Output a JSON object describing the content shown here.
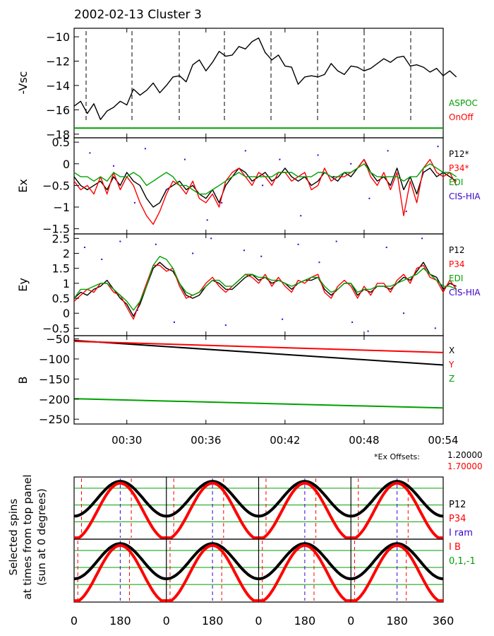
{
  "page": {
    "title": "2002-02-13 Cluster 3"
  },
  "colors": {
    "black": "#000000",
    "red": "#ff0000",
    "green": "#00a000",
    "blue": "#3a00d0",
    "grid_green": "#00a000"
  },
  "chart_data": [
    {
      "id": "vsc",
      "type": "line",
      "ylabel": "-Vsc",
      "yticks": [
        -10,
        -12,
        -14,
        -16,
        -18
      ],
      "ylim": [
        -18.3,
        -9.3
      ],
      "xlim": [
        26,
        54
      ],
      "series": [
        {
          "color": "black",
          "step": 0.5,
          "values": [
            -15.7,
            -15.3,
            -16.3,
            -15.5,
            -16.8,
            -16.1,
            -15.8,
            -15.3,
            -15.6,
            -14.3,
            -14.8,
            -14.4,
            -13.8,
            -14.6,
            -14.0,
            -13.3,
            -13.2,
            -13.7,
            -12.3,
            -11.9,
            -12.8,
            -12.1,
            -11.2,
            -11.6,
            -11.5,
            -10.8,
            -11.0,
            -10.4,
            -10.1,
            -11.3,
            -11.9,
            -11.5,
            -12.4,
            -12.5,
            -13.9,
            -13.3,
            -13.2,
            -13.3,
            -13.1,
            -12.2,
            -12.8,
            -13.1,
            -12.4,
            -12.5,
            -12.8,
            -12.6,
            -12.2,
            -11.8,
            -12.1,
            -11.7,
            -11.6,
            -12.4,
            -12.3,
            -12.5,
            -12.9,
            -12.6,
            -13.2,
            -12.8,
            -13.3
          ]
        },
        {
          "color": "green",
          "step": 28,
          "values": [
            -17.5,
            -17.5
          ]
        }
      ],
      "legend": [
        {
          "label": "ASPOC",
          "color": "green"
        },
        {
          "label": "OnOff",
          "color": "red"
        }
      ]
    },
    {
      "id": "ex",
      "type": "line",
      "ylabel": "Ex",
      "yticks": [
        0.5,
        0.0,
        -0.5,
        -1.0,
        -1.5
      ],
      "ylim": [
        -1.62,
        0.6
      ],
      "xlim": [
        26,
        54
      ],
      "series": [
        {
          "color": "black",
          "step": 0.5,
          "values": [
            -0.3,
            -0.5,
            -0.6,
            -0.5,
            -0.4,
            -0.6,
            -0.3,
            -0.5,
            -0.2,
            -0.4,
            -0.5,
            -0.8,
            -1.0,
            -0.9,
            -0.6,
            -0.5,
            -0.4,
            -0.6,
            -0.5,
            -0.7,
            -0.8,
            -0.6,
            -0.9,
            -0.5,
            -0.3,
            -0.1,
            -0.2,
            -0.4,
            -0.3,
            -0.2,
            -0.4,
            -0.3,
            -0.1,
            -0.3,
            -0.4,
            -0.3,
            -0.5,
            -0.4,
            -0.2,
            -0.3,
            -0.4,
            -0.2,
            -0.3,
            -0.1,
            0.1,
            -0.2,
            -0.4,
            -0.3,
            -0.5,
            -0.1,
            -0.6,
            -0.3,
            -0.7,
            -0.2,
            -0.1,
            -0.3,
            -0.2,
            -0.3,
            -0.4
          ]
        },
        {
          "color": "red",
          "step": 0.5,
          "values": [
            -0.4,
            -0.6,
            -0.5,
            -0.7,
            -0.3,
            -0.7,
            -0.2,
            -0.6,
            -0.3,
            -0.5,
            -0.9,
            -1.2,
            -1.4,
            -1.1,
            -0.7,
            -0.4,
            -0.5,
            -0.7,
            -0.4,
            -0.8,
            -0.9,
            -0.7,
            -1.0,
            -0.4,
            -0.2,
            -0.1,
            -0.3,
            -0.5,
            -0.2,
            -0.3,
            -0.5,
            -0.2,
            -0.2,
            -0.4,
            -0.3,
            -0.2,
            -0.6,
            -0.5,
            -0.1,
            -0.4,
            -0.3,
            -0.3,
            -0.2,
            -0.1,
            0.1,
            -0.3,
            -0.5,
            -0.2,
            -0.6,
            -0.2,
            -1.2,
            -0.4,
            -0.9,
            -0.1,
            0.1,
            -0.2,
            -0.3,
            -0.2,
            -0.5
          ]
        },
        {
          "color": "green",
          "step": 0.5,
          "values": [
            -0.2,
            -0.3,
            -0.3,
            -0.4,
            -0.3,
            -0.4,
            -0.2,
            -0.3,
            -0.3,
            -0.2,
            -0.3,
            -0.5,
            -0.4,
            -0.3,
            -0.2,
            -0.3,
            -0.5,
            -0.5,
            -0.6,
            -0.7,
            -0.7,
            -0.6,
            -0.5,
            -0.4,
            -0.3,
            -0.2,
            -0.3,
            -0.3,
            -0.3,
            -0.3,
            -0.3,
            -0.2,
            -0.2,
            -0.2,
            -0.3,
            -0.3,
            -0.3,
            -0.2,
            -0.2,
            -0.3,
            -0.3,
            -0.2,
            -0.2,
            -0.1,
            0.0,
            -0.2,
            -0.3,
            -0.3,
            -0.3,
            -0.3,
            -0.4,
            -0.3,
            -0.3,
            -0.1,
            0.0,
            -0.1,
            -0.2,
            -0.2,
            -0.3
          ]
        }
      ],
      "scatter": {
        "color": "blue",
        "points": [
          [
            27.2,
            0.25
          ],
          [
            29.0,
            -0.05
          ],
          [
            30.6,
            -0.9
          ],
          [
            31.4,
            0.35
          ],
          [
            33.0,
            -0.6
          ],
          [
            34.4,
            0.1
          ],
          [
            36.1,
            -1.3
          ],
          [
            37.2,
            -0.9
          ],
          [
            39.0,
            0.3
          ],
          [
            40.3,
            -0.5
          ],
          [
            41.6,
            0.1
          ],
          [
            43.2,
            -1.2
          ],
          [
            44.5,
            0.2
          ],
          [
            45.7,
            -0.3
          ],
          [
            47.0,
            0.0
          ],
          [
            48.4,
            -0.8
          ],
          [
            49.8,
            0.3
          ],
          [
            51.2,
            -1.1
          ],
          [
            52.5,
            -0.2
          ],
          [
            53.6,
            0.4
          ]
        ]
      },
      "legend": [
        {
          "label": "P12*",
          "color": "black"
        },
        {
          "label": "P34*",
          "color": "red"
        },
        {
          "label": "EDI",
          "color": "green"
        },
        {
          "label": "CIS-HIA",
          "color": "blue"
        }
      ]
    },
    {
      "id": "ey",
      "type": "line",
      "ylabel": "Ey",
      "yticks": [
        2.5,
        2.0,
        1.5,
        1.0,
        0.5,
        0.0,
        -0.5
      ],
      "ylim": [
        -0.75,
        2.65
      ],
      "xlim": [
        26,
        54
      ],
      "series": [
        {
          "color": "black",
          "step": 0.5,
          "values": [
            0.5,
            0.7,
            0.6,
            0.8,
            0.9,
            1.1,
            0.8,
            0.5,
            0.3,
            -0.1,
            0.3,
            0.9,
            1.5,
            1.7,
            1.5,
            1.4,
            1.0,
            0.6,
            0.5,
            0.6,
            0.9,
            1.1,
            1.0,
            0.8,
            0.8,
            1.0,
            1.2,
            1.3,
            1.1,
            1.2,
            1.0,
            1.1,
            1.0,
            0.8,
            1.0,
            1.1,
            1.1,
            1.2,
            0.8,
            0.6,
            0.8,
            1.0,
            1.0,
            0.6,
            0.8,
            0.7,
            0.9,
            0.9,
            0.8,
            1.0,
            1.2,
            1.1,
            1.4,
            1.7,
            1.3,
            1.2,
            0.8,
            1.0,
            0.9
          ]
        },
        {
          "color": "red",
          "step": 0.5,
          "values": [
            0.4,
            0.6,
            0.8,
            0.7,
            1.0,
            1.0,
            0.7,
            0.6,
            0.2,
            -0.2,
            0.4,
            1.0,
            1.6,
            1.6,
            1.4,
            1.5,
            0.9,
            0.5,
            0.6,
            0.7,
            1.0,
            1.2,
            0.9,
            0.7,
            0.9,
            1.1,
            1.3,
            1.2,
            1.0,
            1.3,
            0.9,
            1.2,
            0.9,
            0.7,
            1.1,
            1.0,
            1.2,
            1.3,
            0.7,
            0.5,
            0.9,
            1.1,
            0.9,
            0.5,
            0.9,
            0.6,
            1.0,
            1.0,
            0.7,
            1.1,
            1.3,
            1.0,
            1.5,
            1.6,
            1.2,
            1.1,
            0.7,
            1.1,
            0.8
          ]
        },
        {
          "color": "green",
          "step": 0.5,
          "values": [
            0.5,
            0.8,
            0.8,
            0.9,
            1.0,
            1.0,
            0.8,
            0.6,
            0.4,
            0.1,
            0.4,
            0.9,
            1.6,
            1.9,
            1.8,
            1.5,
            1.0,
            0.7,
            0.6,
            0.7,
            0.9,
            1.1,
            1.1,
            0.9,
            0.9,
            1.1,
            1.3,
            1.3,
            1.2,
            1.2,
            1.1,
            1.1,
            1.0,
            0.9,
            1.0,
            1.1,
            1.2,
            1.2,
            0.9,
            0.7,
            0.8,
            1.0,
            1.0,
            0.7,
            0.8,
            0.8,
            0.9,
            0.9,
            0.9,
            1.0,
            1.1,
            1.2,
            1.3,
            1.5,
            1.3,
            1.1,
            0.9,
            0.9,
            0.8
          ]
        }
      ],
      "scatter": {
        "color": "blue",
        "points": [
          [
            26.8,
            2.2
          ],
          [
            28.1,
            1.8
          ],
          [
            29.5,
            2.4
          ],
          [
            30.8,
            0.1
          ],
          [
            32.2,
            2.3
          ],
          [
            33.6,
            -0.3
          ],
          [
            35.0,
            2.0
          ],
          [
            36.4,
            2.5
          ],
          [
            37.5,
            -0.4
          ],
          [
            38.9,
            2.1
          ],
          [
            40.2,
            1.9
          ],
          [
            41.8,
            -0.2
          ],
          [
            43.0,
            2.3
          ],
          [
            44.6,
            1.7
          ],
          [
            45.9,
            2.4
          ],
          [
            47.1,
            -0.3
          ],
          [
            48.3,
            -0.6
          ],
          [
            49.7,
            2.2
          ],
          [
            51.0,
            0.0
          ],
          [
            52.4,
            2.5
          ],
          [
            53.4,
            -0.5
          ]
        ]
      },
      "legend": [
        {
          "label": "P12",
          "color": "black"
        },
        {
          "label": "P34",
          "color": "red"
        },
        {
          "label": "EDI",
          "color": "green"
        },
        {
          "label": "CIS-HIA",
          "color": "blue"
        }
      ]
    },
    {
      "id": "b",
      "type": "line",
      "ylabel": "B",
      "yticks": [
        -50,
        -100,
        -150,
        -200,
        -250
      ],
      "ylim": [
        -262,
        -42
      ],
      "xlim": [
        26,
        54
      ],
      "xticks": [
        "00:30",
        "00:36",
        "00:42",
        "00:48",
        "00:54"
      ],
      "series": [
        {
          "color": "black",
          "step": 28,
          "values": [
            -54,
            -115
          ]
        },
        {
          "color": "red",
          "step": 28,
          "values": [
            -56,
            -84
          ]
        },
        {
          "color": "green",
          "step": 28,
          "values": [
            -199,
            -222
          ]
        }
      ],
      "legend": [
        {
          "label": "X",
          "color": "black"
        },
        {
          "label": "Y",
          "color": "red"
        },
        {
          "label": "Z",
          "color": "green"
        }
      ]
    },
    {
      "id": "spins",
      "type": "line",
      "ylabel_lines": [
        "Selected spins",
        "at times from top panel",
        "(sun at 0 degrees)"
      ],
      "xticks": [
        "0",
        "180",
        "0",
        "180",
        "0",
        "180",
        "0",
        "180",
        "360"
      ],
      "rows": 2,
      "cols": 4,
      "legend": [
        {
          "label": "P12",
          "color": "black"
        },
        {
          "label": "P34",
          "color": "red"
        },
        {
          "label": "I ram",
          "color": "blue"
        },
        {
          "label": "I B",
          "color": "red"
        },
        {
          "label": "0,1,-1",
          "color": "green"
        }
      ]
    }
  ],
  "offsets": {
    "label": "*Ex Offsets:",
    "p12": "1.20000",
    "p34": "1.70000"
  }
}
